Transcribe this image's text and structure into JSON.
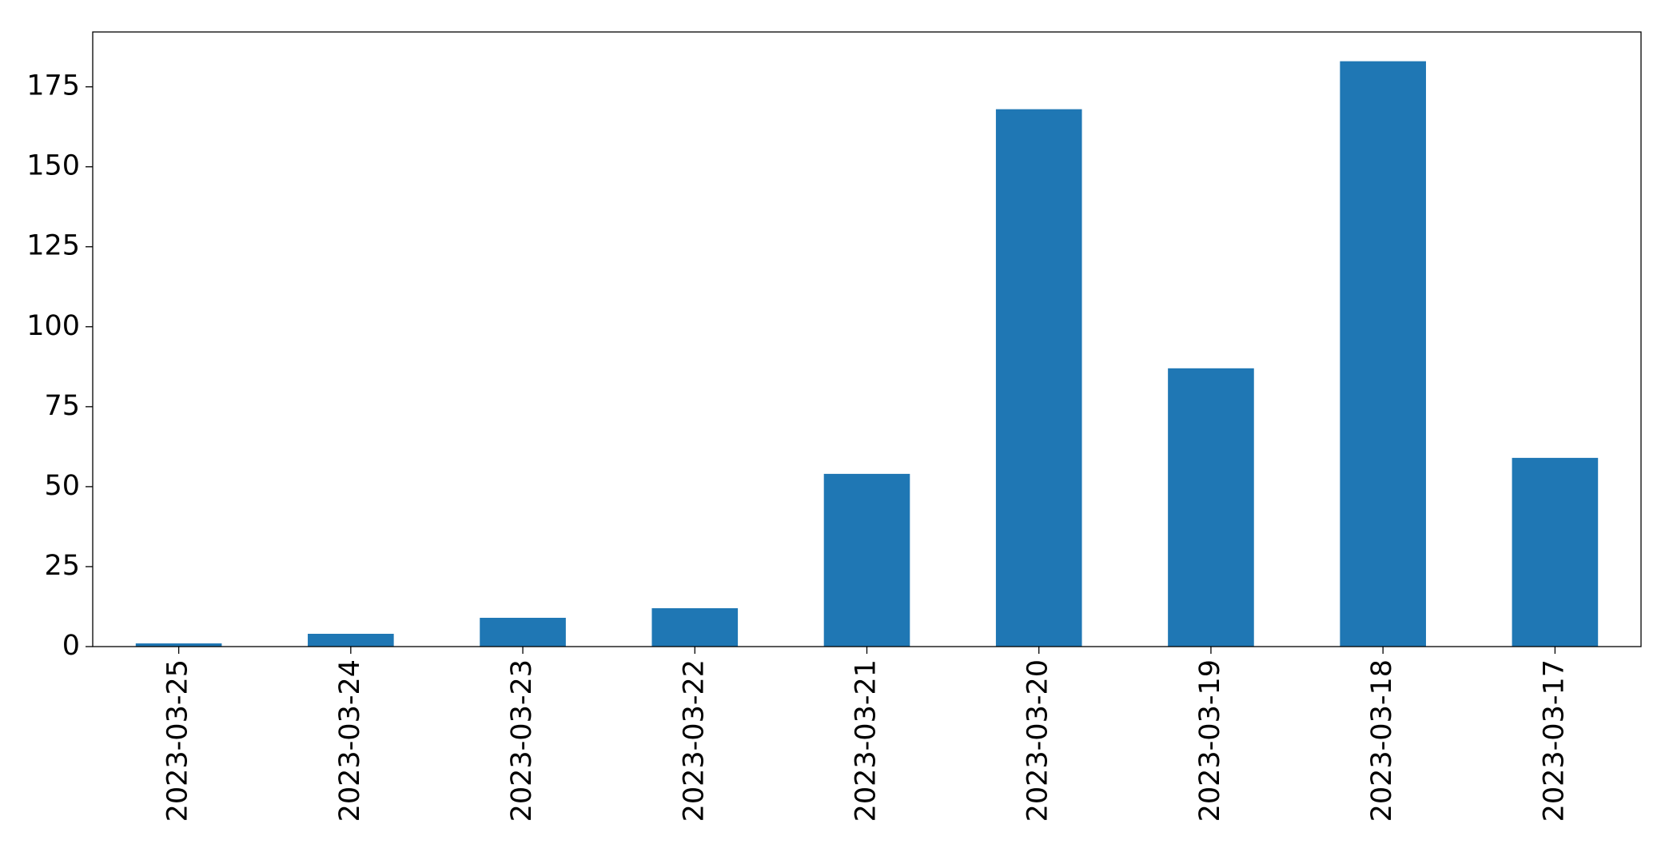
{
  "chart_data": {
    "type": "bar",
    "categories": [
      "2023-03-25",
      "2023-03-24",
      "2023-03-23",
      "2023-03-22",
      "2023-03-21",
      "2023-03-20",
      "2023-03-19",
      "2023-03-18",
      "2023-03-17"
    ],
    "values": [
      1,
      4,
      9,
      12,
      54,
      168,
      87,
      183,
      59
    ],
    "color": "#1f77b4",
    "ylim": [
      0,
      192.15
    ],
    "yticks": [
      0,
      25,
      50,
      75,
      100,
      125,
      150,
      175
    ],
    "grid": false
  }
}
